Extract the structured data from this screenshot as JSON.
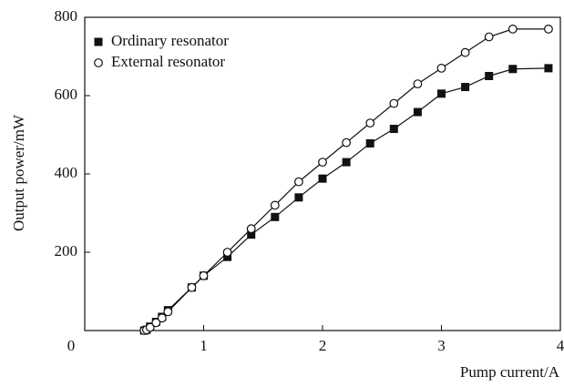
{
  "chart_data": {
    "type": "line",
    "x_label": "Pump current/A",
    "y_label": "Output power/mW",
    "x": [
      0.5,
      0.52,
      0.55,
      0.6,
      0.65,
      0.7,
      0.9,
      1.0,
      1.2,
      1.4,
      1.6,
      1.8,
      2.0,
      2.2,
      2.4,
      2.6,
      2.8,
      3.0,
      3.2,
      3.4,
      3.6,
      3.9
    ],
    "series": [
      {
        "name": "Ordinary resonator",
        "marker": "square",
        "color": "#111111",
        "values": [
          0,
          2,
          10,
          22,
          35,
          52,
          110,
          140,
          188,
          245,
          290,
          340,
          388,
          430,
          478,
          515,
          558,
          605,
          622,
          650,
          668,
          670
        ]
      },
      {
        "name": "External resonator",
        "marker": "circle",
        "color": "#111111",
        "values": [
          0,
          2,
          8,
          20,
          32,
          48,
          110,
          140,
          200,
          260,
          320,
          380,
          430,
          480,
          530,
          580,
          630,
          670,
          710,
          750,
          770,
          770
        ]
      }
    ],
    "xlim": [
      0,
      4
    ],
    "ylim": [
      0,
      800
    ],
    "xticks": [
      0,
      1,
      2,
      3,
      4
    ],
    "yticks": [
      200,
      400,
      600,
      800
    ],
    "legend": "upper left"
  }
}
